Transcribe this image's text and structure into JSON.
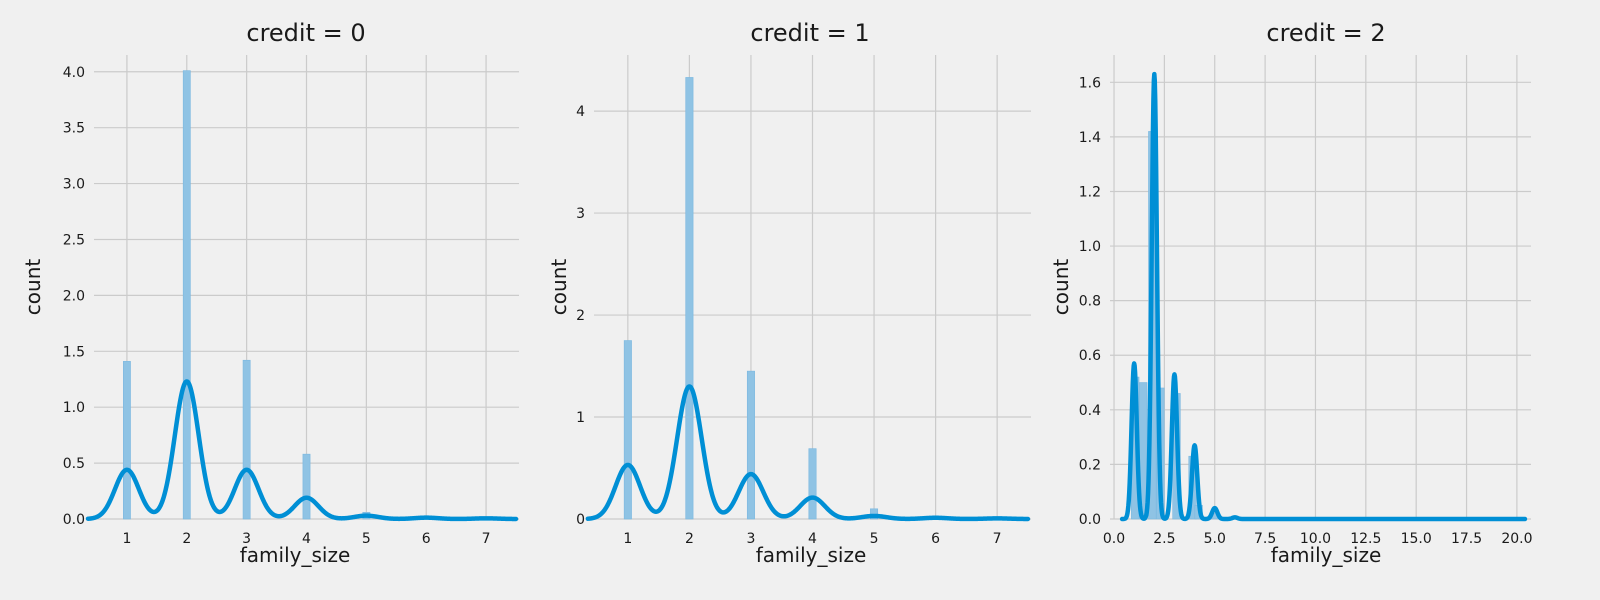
{
  "chart_data": [
    {
      "type": "bar",
      "title": "credit = 0",
      "xlabel": "family_size",
      "ylabel": "count",
      "xlim": [
        0.45,
        7.55
      ],
      "ylim": [
        0,
        4.15
      ],
      "xticks": [
        1,
        2,
        3,
        4,
        5,
        6,
        7
      ],
      "xtick_labels": [
        "1",
        "2",
        "3",
        "4",
        "5",
        "6",
        "7"
      ],
      "yticks": [
        0,
        0.5,
        1.0,
        1.5,
        2.0,
        2.5,
        3.0,
        3.5,
        4.0
      ],
      "ytick_labels": [
        "0.0",
        "0.5",
        "1.0",
        "1.5",
        "2.0",
        "2.5",
        "3.0",
        "3.5",
        "4.0"
      ],
      "grid": true,
      "bar_width": 0.12,
      "bars": [
        {
          "x": 1,
          "value": 1.41
        },
        {
          "x": 2,
          "value": 4.01
        },
        {
          "x": 3,
          "value": 1.42
        },
        {
          "x": 4,
          "value": 0.58
        },
        {
          "x": 5,
          "value": 0.06
        },
        {
          "x": 6,
          "value": 0.01
        },
        {
          "x": 7,
          "value": 0.01
        }
      ],
      "kde": {
        "bandwidth": 0.2,
        "x_range": [
          0.35,
          7.5
        ],
        "peaks": [
          {
            "x": 1,
            "height": 0.44
          },
          {
            "x": 2,
            "height": 1.23
          },
          {
            "x": 3,
            "height": 0.44
          },
          {
            "x": 4,
            "height": 0.19
          },
          {
            "x": 5,
            "height": 0.03
          },
          {
            "x": 6,
            "height": 0.012
          },
          {
            "x": 7,
            "height": 0.006
          }
        ]
      }
    },
    {
      "type": "bar",
      "title": "credit = 1",
      "xlabel": "family_size",
      "ylabel": "count",
      "xlim": [
        0.45,
        7.55
      ],
      "ylim": [
        0,
        4.55
      ],
      "xticks": [
        1,
        2,
        3,
        4,
        5,
        6,
        7
      ],
      "xtick_labels": [
        "1",
        "2",
        "3",
        "4",
        "5",
        "6",
        "7"
      ],
      "yticks": [
        0,
        1,
        2,
        3,
        4
      ],
      "ytick_labels": [
        "0",
        "1",
        "2",
        "3",
        "4"
      ],
      "grid": true,
      "bar_width": 0.12,
      "bars": [
        {
          "x": 1,
          "value": 1.75
        },
        {
          "x": 2,
          "value": 4.33
        },
        {
          "x": 3,
          "value": 1.45
        },
        {
          "x": 4,
          "value": 0.69
        },
        {
          "x": 5,
          "value": 0.1
        },
        {
          "x": 6,
          "value": 0.01
        },
        {
          "x": 7,
          "value": 0.01
        }
      ],
      "kde": {
        "bandwidth": 0.2,
        "x_range": [
          0.35,
          7.5
        ],
        "peaks": [
          {
            "x": 1,
            "height": 0.53
          },
          {
            "x": 2,
            "height": 1.3
          },
          {
            "x": 3,
            "height": 0.44
          },
          {
            "x": 4,
            "height": 0.21
          },
          {
            "x": 5,
            "height": 0.03
          },
          {
            "x": 6,
            "height": 0.012
          },
          {
            "x": 7,
            "height": 0.006
          }
        ]
      }
    },
    {
      "type": "bar",
      "title": "credit = 2",
      "xlabel": "family_size",
      "ylabel": "count",
      "xlim": [
        -0.2,
        20.7
      ],
      "ylim": [
        0,
        1.7
      ],
      "xticks": [
        0.0,
        2.5,
        5.0,
        7.5,
        10.0,
        12.5,
        15.0,
        17.5,
        20.0
      ],
      "xtick_labels": [
        "0.0",
        "2.5",
        "5.0",
        "7.5",
        "10.0",
        "12.5",
        "15.0",
        "17.5",
        "20.0"
      ],
      "yticks": [
        0,
        0.2,
        0.4,
        0.6,
        0.8,
        1.0,
        1.2,
        1.4,
        1.6
      ],
      "ytick_labels": [
        "0.0",
        "0.2",
        "0.4",
        "0.6",
        "0.8",
        "1.0",
        "1.2",
        "1.4",
        "1.6"
      ],
      "grid": true,
      "bar_width": 0.38,
      "bars": [
        {
          "x": 1.05,
          "value": 0.52
        },
        {
          "x": 1.45,
          "value": 0.5
        },
        {
          "x": 1.9,
          "value": 1.42
        },
        {
          "x": 2.3,
          "value": 0.48
        },
        {
          "x": 3.1,
          "value": 0.46
        },
        {
          "x": 3.9,
          "value": 0.23
        },
        {
          "x": 4.2,
          "value": 0.05
        },
        {
          "x": 5.0,
          "value": 0.02
        }
      ],
      "kde": {
        "bandwidth": 0.13,
        "x_range": [
          0.4,
          20.4
        ],
        "peaks": [
          {
            "x": 1,
            "height": 0.57
          },
          {
            "x": 2,
            "height": 1.63
          },
          {
            "x": 3,
            "height": 0.53
          },
          {
            "x": 4,
            "height": 0.27
          },
          {
            "x": 5,
            "height": 0.04
          },
          {
            "x": 6,
            "height": 0.006
          }
        ]
      }
    }
  ]
}
